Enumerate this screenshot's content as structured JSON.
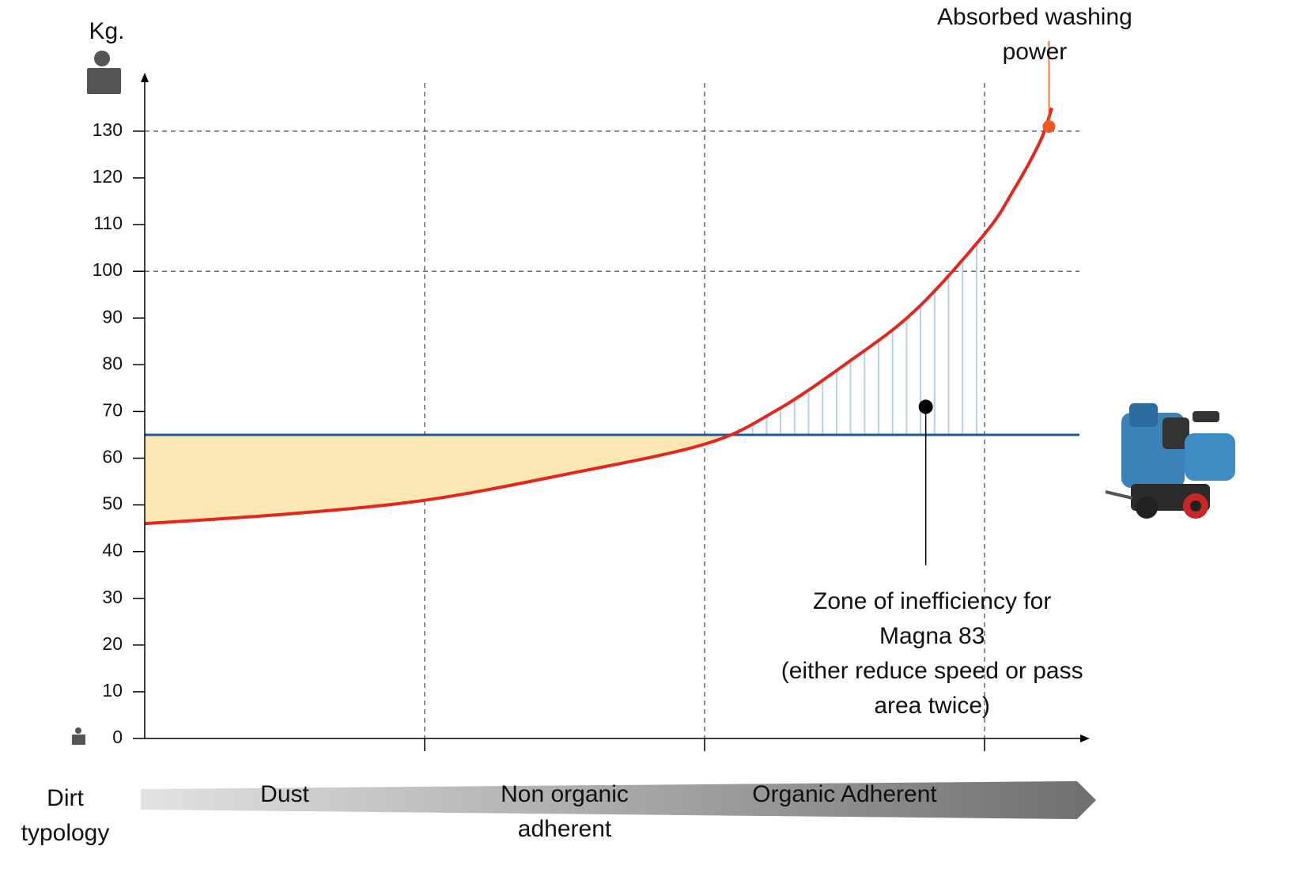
{
  "chart_data": {
    "type": "line",
    "y_label": "Kg.",
    "x_label": "Dirt typology",
    "categories": [
      "Dust",
      "Non organic adherent",
      "Organic Adherent"
    ],
    "zone_boundaries": [
      1,
      2,
      3
    ],
    "xlim": [
      0,
      3.37
    ],
    "ylim": [
      0,
      142
    ],
    "yticks": [
      0,
      10,
      20,
      30,
      40,
      50,
      60,
      70,
      80,
      90,
      100,
      110,
      120,
      130
    ],
    "reference_lines": [
      100,
      130
    ],
    "x": [
      0,
      0.5,
      1,
      1.5,
      2,
      2.25,
      2.5,
      2.75,
      3,
      3.1,
      3.2,
      3.24
    ],
    "values": [
      46,
      48,
      51,
      56.5,
      63,
      70,
      80,
      91.5,
      108,
      117,
      128,
      135
    ],
    "color": "#e4261d",
    "capacity": {
      "value": 65,
      "color": "#1f5a9a"
    },
    "surplus_fill_color": "#fde8b5",
    "deficit_hatch_color": "#b9cde6",
    "annotations": [
      {
        "lines": [
          "Absorbed washing power"
        ],
        "x": 3.23,
        "y": 131,
        "color": "#f05a22"
      },
      {
        "lines": [
          "Zone of inefficiency for",
          "Magna 83",
          "(either reduce speed or pass",
          "area twice)"
        ],
        "x": 2.79,
        "y": 71,
        "color": "#000000"
      }
    ]
  }
}
